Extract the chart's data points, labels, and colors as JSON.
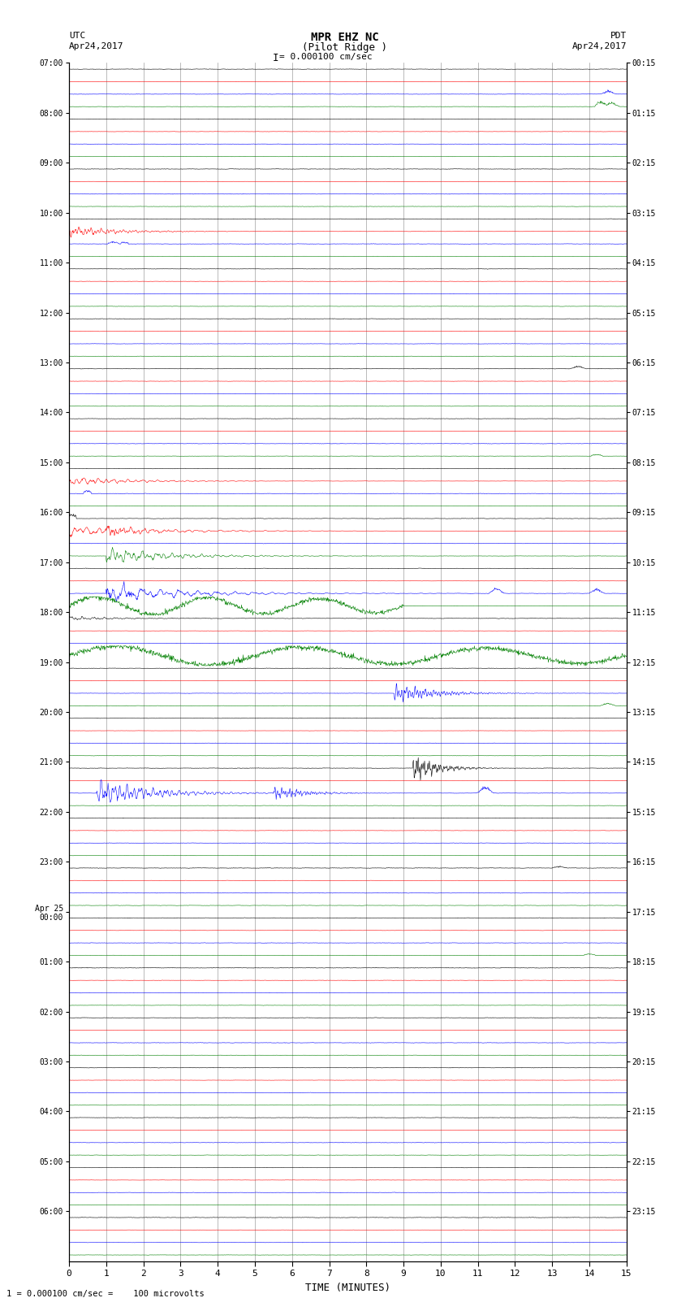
{
  "title_line1": "MPR EHZ NC",
  "title_line2": "(Pilot Ridge )",
  "scale_label": "= 0.000100 cm/sec",
  "utc_label_line1": "UTC",
  "utc_label_line2": "Apr24,2017",
  "pdt_label_line1": "PDT",
  "pdt_label_line2": "Apr24,2017",
  "xlabel": "TIME (MINUTES)",
  "bottom_note": "1 = 0.000100 cm/sec =    100 microvolts",
  "background_color": "#ffffff",
  "trace_colors": [
    "black",
    "red",
    "blue",
    "green"
  ],
  "grid_color": "#777777",
  "noise_amp_black": 0.03,
  "noise_amp_red": 0.018,
  "noise_amp_blue": 0.025,
  "noise_amp_green": 0.022,
  "seed": 42,
  "hour_labels_utc": [
    "07:00",
    "08:00",
    "09:00",
    "10:00",
    "11:00",
    "12:00",
    "13:00",
    "14:00",
    "15:00",
    "16:00",
    "17:00",
    "18:00",
    "19:00",
    "20:00",
    "21:00",
    "22:00",
    "23:00",
    "Apr 25\n00:00",
    "01:00",
    "02:00",
    "03:00",
    "04:00",
    "05:00",
    "06:00"
  ],
  "hour_labels_pdt": [
    "00:15",
    "01:15",
    "02:15",
    "03:15",
    "04:15",
    "05:15",
    "06:15",
    "07:15",
    "08:15",
    "09:15",
    "10:15",
    "11:15",
    "12:15",
    "13:15",
    "14:15",
    "15:15",
    "16:15",
    "17:15",
    "18:15",
    "19:15",
    "20:15",
    "21:15",
    "22:15",
    "23:15"
  ]
}
